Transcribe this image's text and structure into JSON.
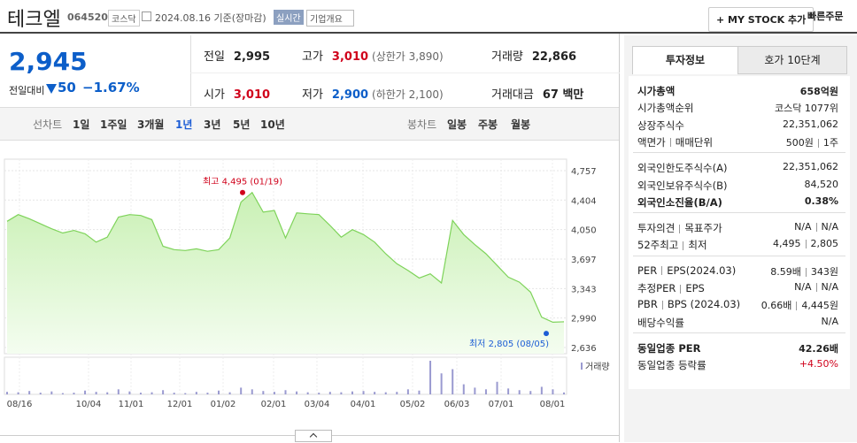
{
  "header": {
    "name": "테크엘",
    "code": "064520",
    "market": "코스닥",
    "date": "2024.08.16 기준(장마감)",
    "realtime": "실시간",
    "company_info": "기업개요",
    "my_stock": "+ MY STOCK 추가",
    "quick_order": "빠른주문"
  },
  "quote": {
    "price": "2,945",
    "change_label": "전일대비",
    "change": "50",
    "change_rate": "−1.67%",
    "stats": [
      [
        {
          "label": "전일",
          "value": "2,995"
        },
        {
          "label": "고가",
          "value": "3,010",
          "note": "(상한가 3,890)"
        },
        {
          "label": "거래량",
          "value": "22,866"
        }
      ],
      [
        {
          "label": "시가",
          "value": "3,010"
        },
        {
          "label": "저가",
          "value": "2,900",
          "note": "(하한가 2,100)"
        },
        {
          "label": "거래대금",
          "value": "67 백만"
        }
      ]
    ]
  },
  "tabs": {
    "line_label": "선차트",
    "line": [
      "1일",
      "1주일",
      "3개월",
      "1년",
      "3년",
      "5년",
      "10년"
    ],
    "active": "1년",
    "candle_label": "봉차트",
    "candle": [
      "일봉",
      "주봉",
      "월봉"
    ]
  },
  "chart": {
    "type": "area",
    "color": "#7ed35a",
    "values": [
      4150,
      4230,
      4180,
      4120,
      4060,
      4010,
      4040,
      4000,
      3900,
      3960,
      4200,
      4230,
      4220,
      4170,
      3850,
      3810,
      3800,
      3820,
      3790,
      3810,
      3950,
      4380,
      4495,
      4260,
      4280,
      3950,
      4250,
      4240,
      4230,
      4100,
      3960,
      4050,
      3990,
      3900,
      3760,
      3640,
      3560,
      3470,
      3520,
      3410,
      4160,
      3990,
      3870,
      3760,
      3620,
      3480,
      3420,
      3300,
      3000,
      2940,
      2945
    ],
    "ylim": [
      2562,
      4895
    ],
    "yticks": [
      {
        "value": 4757,
        "label": "4,757"
      },
      {
        "value": 4404,
        "label": "4,404"
      },
      {
        "value": 4050,
        "label": "4,050"
      },
      {
        "value": 3697,
        "label": "3,697"
      },
      {
        "value": 3343,
        "label": "3,343"
      },
      {
        "value": 2990,
        "label": "2,990"
      },
      {
        "value": 2636,
        "label": "2,636"
      }
    ],
    "high": 4495,
    "high_label": "최고 4,495 (01/19)",
    "low": 2805,
    "low_label": "최저 2,805 (08/05)",
    "volume_label": "거래량",
    "volumes": [
      30000,
      25000,
      40000,
      20000,
      35000,
      15000,
      20000,
      45000,
      30000,
      25000,
      60000,
      35000,
      20000,
      25000,
      50000,
      20000,
      15000,
      30000,
      20000,
      45000,
      25000,
      80000,
      60000,
      40000,
      30000,
      50000,
      35000,
      25000,
      20000,
      30000,
      25000,
      35000,
      40000,
      30000,
      25000,
      30000,
      60000,
      45000,
      400000,
      250000,
      300000,
      120000,
      80000,
      60000,
      150000,
      70000,
      50000,
      40000,
      90000,
      60000,
      22866
    ],
    "x_labels": [
      "08/16",
      "10/04",
      "11/01",
      "12/01",
      "01/02",
      "02/01",
      "03/04",
      "04/01",
      "05/02",
      "06/03",
      "07/01",
      "08/01"
    ]
  },
  "invest": {
    "tabs": [
      "투자정보",
      "호가 10단계"
    ],
    "groups": [
      [
        {
          "label": [
            "시가총액"
          ],
          "value": [
            "658억원"
          ],
          "bold": true
        },
        {
          "label": [
            "시가총액순위"
          ],
          "value": [
            "코스닥 1077위"
          ]
        },
        {
          "label": [
            "상장주식수"
          ],
          "value": [
            "22,351,062"
          ]
        },
        {
          "label": [
            "액면가",
            "매매단위"
          ],
          "value": [
            "500원",
            "1주"
          ]
        }
      ],
      [
        {
          "label": [
            "외국인한도주식수(A)"
          ],
          "value": [
            "22,351,062"
          ]
        },
        {
          "label": [
            "외국인보유주식수(B)"
          ],
          "value": [
            "84,520"
          ]
        },
        {
          "label": [
            "외국인소진율(B/A)"
          ],
          "value": [
            "0.38%"
          ],
          "bold": true
        }
      ],
      [
        {
          "label": [
            "투자의견",
            "목표주가"
          ],
          "value": [
            "N/A",
            "N/A"
          ]
        },
        {
          "label": [
            "52주최고",
            "최저"
          ],
          "value": [
            "4,495",
            "2,805"
          ]
        }
      ],
      [
        {
          "label": [
            "PER",
            "EPS(2024.03)"
          ],
          "value": [
            "8.59배",
            "343원"
          ]
        },
        {
          "label": [
            "추정PER",
            "EPS"
          ],
          "value": [
            "N/A",
            "N/A"
          ]
        },
        {
          "label": [
            "PBR",
            "BPS (2024.03)"
          ],
          "value": [
            "0.66배",
            "4,445원"
          ]
        },
        {
          "label": [
            "배당수익률"
          ],
          "value": [
            "N/A"
          ]
        }
      ],
      [
        {
          "label": [
            "동일업종 PER"
          ],
          "value": [
            "42.26배"
          ],
          "bold": true
        },
        {
          "label": [
            "동일업종 등락률"
          ],
          "value": [
            "+4.50%"
          ],
          "red": true
        }
      ]
    ]
  }
}
